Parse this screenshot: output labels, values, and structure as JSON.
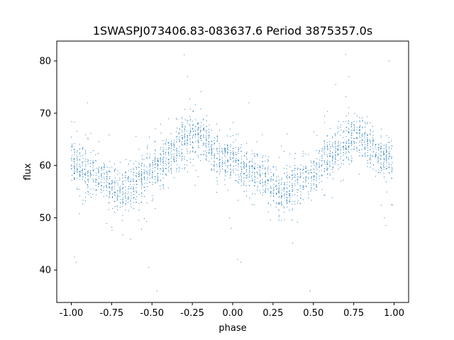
{
  "chart_data": {
    "type": "scatter",
    "title": "1SWASPJ073406.83-083637.6 Period 3875357.0s",
    "xlabel": "phase",
    "ylabel": "flux",
    "xlim": [
      -1.09,
      1.09
    ],
    "ylim": [
      33.8,
      83.8
    ],
    "xticks": [
      "-1.00",
      "-0.75",
      "-0.50",
      "-0.25",
      "0.00",
      "0.25",
      "0.50",
      "0.75",
      "1.00"
    ],
    "xtick_values": [
      -1.0,
      -0.75,
      -0.5,
      -0.25,
      0.0,
      0.25,
      0.5,
      0.75,
      1.0
    ],
    "yticks": [
      "40",
      "50",
      "60",
      "70",
      "80"
    ],
    "ytick_values": [
      40,
      50,
      60,
      70,
      80
    ],
    "grid": false,
    "color": "#1f77b4",
    "series": [
      {
        "trend_phase": [
          -1.0,
          -0.9,
          -0.8,
          -0.7,
          -0.6,
          -0.5,
          -0.4,
          -0.3,
          -0.2,
          -0.1,
          0.0,
          0.1,
          0.2,
          0.3,
          0.4,
          0.5,
          0.6,
          0.7,
          0.8,
          0.9,
          1.0
        ],
        "trend_flux": [
          61.0,
          58.5,
          57.5,
          54.5,
          56.5,
          58.5,
          61.5,
          64.5,
          66.0,
          62.0,
          61.0,
          58.5,
          57.5,
          54.5,
          56.5,
          58.5,
          61.5,
          64.5,
          66.0,
          62.0,
          61.0
        ],
        "outliers": [
          [
            -0.98,
            42.5
          ],
          [
            -0.97,
            41.5
          ],
          [
            -0.52,
            40.5
          ],
          [
            -0.47,
            36.0
          ],
          [
            -0.3,
            81.2
          ],
          [
            -0.28,
            77.0
          ],
          [
            -0.02,
            50.0
          ],
          [
            -0.01,
            48.0
          ],
          [
            0.03,
            42.0
          ],
          [
            0.05,
            41.5
          ],
          [
            0.48,
            36.0
          ],
          [
            0.7,
            81.2
          ],
          [
            0.72,
            77.0
          ],
          [
            0.94,
            50.0
          ],
          [
            0.95,
            48.5
          ],
          [
            0.97,
            80.0
          ],
          [
            -0.9,
            72.0
          ],
          [
            0.1,
            72.0
          ]
        ]
      }
    ]
  }
}
